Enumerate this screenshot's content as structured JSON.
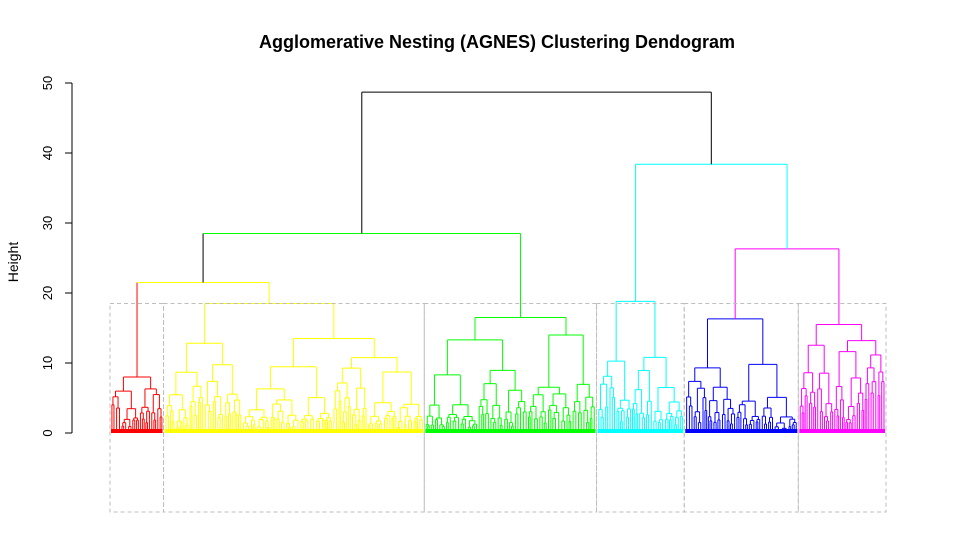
{
  "chart_data": {
    "type": "dendrogram",
    "title": "Agglomerative Nesting (AGNES) Clustering Dendogram",
    "ylabel": "Height",
    "xlabel": "",
    "ylim": [
      0,
      50
    ],
    "yticks": [
      0,
      10,
      20,
      30,
      40,
      50
    ],
    "grid": false,
    "cluster_rectangles": true,
    "clusters": [
      {
        "id": 1,
        "color": "#FF0000",
        "leaf_start": 0.0,
        "leaf_end": 0.069,
        "merge_height": 8.0,
        "sub_height": 6.3,
        "sub_split": 0.55
      },
      {
        "id": 2,
        "color": "#FFFF00",
        "leaf_start": 0.069,
        "leaf_end": 0.405,
        "merge_height": 18.5,
        "sub_height": 13.5,
        "sub_split": 0.3
      },
      {
        "id": 3,
        "color": "#00FF00",
        "leaf_start": 0.405,
        "leaf_end": 0.627,
        "merge_height": 16.5,
        "sub_height": 14.0,
        "sub_split": 0.6
      },
      {
        "id": 4,
        "color": "#00FFFF",
        "leaf_start": 0.627,
        "leaf_end": 0.74,
        "merge_height": 18.8,
        "sub_height": 10.8,
        "sub_split": 0.4
      },
      {
        "id": 5,
        "color": "#0000FF",
        "leaf_start": 0.74,
        "leaf_end": 0.887,
        "merge_height": 16.3,
        "sub_height": 9.8,
        "sub_split": 0.45
      },
      {
        "id": 6,
        "color": "#FF00FF",
        "leaf_start": 0.887,
        "leaf_end": 1.0,
        "merge_height": 15.5,
        "sub_height": 13.2,
        "sub_split": 0.4
      }
    ],
    "merges": [
      {
        "left": 1,
        "right": 2,
        "height": 21.5,
        "color": "#FFFF00"
      },
      {
        "left": "1+2",
        "right": 3,
        "height": 28.5,
        "color": "#00FF00"
      },
      {
        "left": 5,
        "right": 6,
        "height": 26.3,
        "color": "#FF00FF"
      },
      {
        "left": 4,
        "right": "5+6",
        "height": 38.4,
        "color": "#00FFFF"
      },
      {
        "left": "1+2+3",
        "right": "4+5+6",
        "height": 48.7,
        "color": "#000000"
      }
    ],
    "rect_top_height": 18.5
  }
}
